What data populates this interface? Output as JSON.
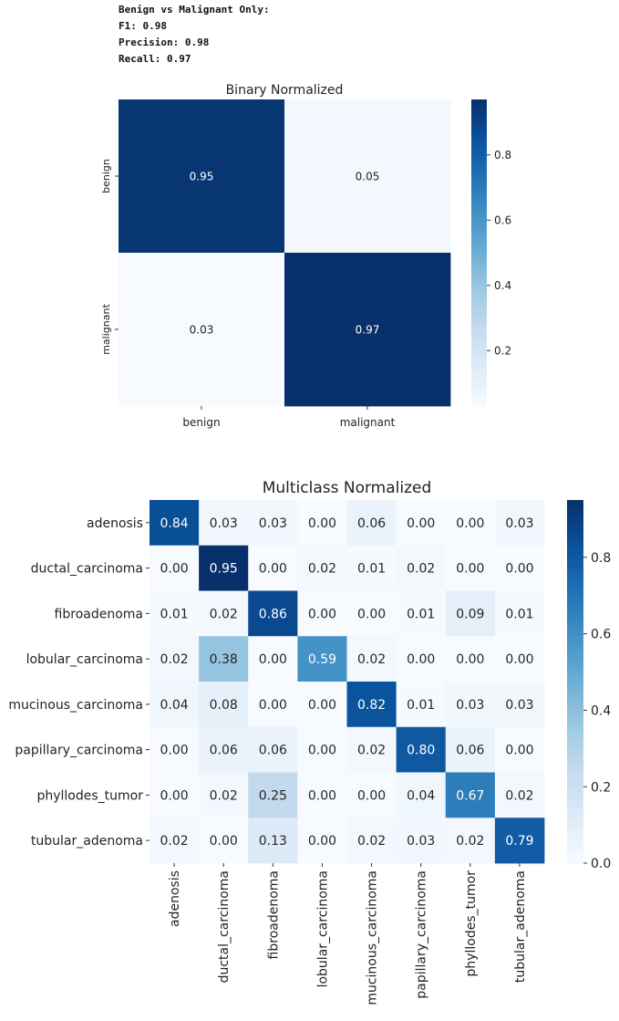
{
  "metrics": {
    "header": "Benign vs Malignant Only:",
    "f1": "F1: 0.98",
    "precision": "Precision: 0.98",
    "recall": "Recall: 0.97"
  },
  "chart_data": [
    {
      "type": "heatmap",
      "title": "Binary Normalized",
      "rows": [
        "benign",
        "malignant"
      ],
      "cols": [
        "benign",
        "malignant"
      ],
      "values": [
        [
          0.95,
          0.05
        ],
        [
          0.03,
          0.97
        ]
      ],
      "labels": [
        [
          "0.95",
          "0.05"
        ],
        [
          "0.03",
          "0.97"
        ]
      ],
      "colorbar": {
        "min": 0.03,
        "max": 0.97,
        "ticks": [
          "0.2",
          "0.4",
          "0.6",
          "0.8"
        ],
        "tick_values": [
          0.2,
          0.4,
          0.6,
          0.8
        ]
      },
      "cmap": "Blues"
    },
    {
      "type": "heatmap",
      "title": "Multiclass Normalized",
      "rows": [
        "adenosis",
        "ductal_carcinoma",
        "fibroadenoma",
        "lobular_carcinoma",
        "mucinous_carcinoma",
        "papillary_carcinoma",
        "phyllodes_tumor",
        "tubular_adenoma"
      ],
      "cols": [
        "adenosis",
        "ductal_carcinoma",
        "fibroadenoma",
        "lobular_carcinoma",
        "mucinous_carcinoma",
        "papillary_carcinoma",
        "phyllodes_tumor",
        "tubular_adenoma"
      ],
      "values": [
        [
          0.84,
          0.03,
          0.03,
          0.0,
          0.06,
          0.0,
          0.0,
          0.03
        ],
        [
          0.0,
          0.95,
          0.0,
          0.02,
          0.01,
          0.02,
          0.0,
          0.0
        ],
        [
          0.01,
          0.02,
          0.86,
          0.0,
          0.0,
          0.01,
          0.09,
          0.01
        ],
        [
          0.02,
          0.38,
          0.0,
          0.59,
          0.02,
          0.0,
          0.0,
          0.0
        ],
        [
          0.04,
          0.08,
          0.0,
          0.0,
          0.82,
          0.01,
          0.03,
          0.03
        ],
        [
          0.0,
          0.06,
          0.06,
          0.0,
          0.02,
          0.8,
          0.06,
          0.0
        ],
        [
          0.0,
          0.02,
          0.25,
          0.0,
          0.0,
          0.04,
          0.67,
          0.02
        ],
        [
          0.02,
          0.0,
          0.13,
          0.0,
          0.02,
          0.03,
          0.02,
          0.79
        ]
      ],
      "labels": [
        [
          "0.84",
          "0.03",
          "0.03",
          "0.00",
          "0.06",
          "0.00",
          "0.00",
          "0.03"
        ],
        [
          "0.00",
          "0.95",
          "0.00",
          "0.02",
          "0.01",
          "0.02",
          "0.00",
          "0.00"
        ],
        [
          "0.01",
          "0.02",
          "0.86",
          "0.00",
          "0.00",
          "0.01",
          "0.09",
          "0.01"
        ],
        [
          "0.02",
          "0.38",
          "0.00",
          "0.59",
          "0.02",
          "0.00",
          "0.00",
          "0.00"
        ],
        [
          "0.04",
          "0.08",
          "0.00",
          "0.00",
          "0.82",
          "0.01",
          "0.03",
          "0.03"
        ],
        [
          "0.00",
          "0.06",
          "0.06",
          "0.00",
          "0.02",
          "0.80",
          "0.06",
          "0.00"
        ],
        [
          "0.00",
          "0.02",
          "0.25",
          "0.00",
          "0.00",
          "0.04",
          "0.67",
          "0.02"
        ],
        [
          "0.02",
          "0.00",
          "0.13",
          "0.00",
          "0.02",
          "0.03",
          "0.02",
          "0.79"
        ]
      ],
      "colorbar": {
        "min": 0.0,
        "max": 0.95,
        "ticks": [
          "0.0",
          "0.2",
          "0.4",
          "0.6",
          "0.8"
        ],
        "tick_values": [
          0.0,
          0.2,
          0.4,
          0.6,
          0.8
        ]
      },
      "cmap": "Blues"
    }
  ]
}
